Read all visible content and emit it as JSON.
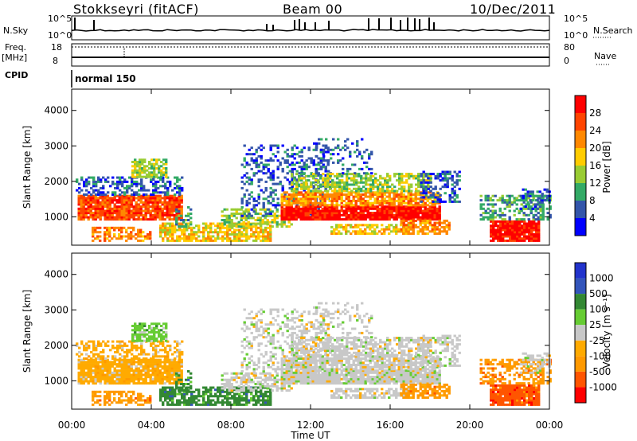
{
  "header": {
    "station": "Stokkseyri (fitACF)",
    "beam": "Beam 00",
    "date": "10/Dec/2011"
  },
  "top_panel": {
    "left_label": "N.Sky",
    "right_label": "N.Search",
    "left_ticks": [
      "10^5",
      "10^0"
    ],
    "right_ticks": [
      "10^5",
      "10^0"
    ]
  },
  "freq_panel": {
    "left_label_1": "Freq.",
    "left_label_2": "[MHz]",
    "right_label": "Nave",
    "left_ticks": [
      "18",
      "8"
    ],
    "right_ticks": [
      "80",
      "0"
    ],
    "cpid_label": "CPID",
    "mode": "normal 150"
  },
  "colors": {
    "power": [
      "#0000ff",
      "#3355aa",
      "#33aa66",
      "#99cc33",
      "#ffcc00",
      "#ff8800",
      "#ff4400",
      "#ff0000"
    ],
    "velocity": [
      "#ff0000",
      "#ff5500",
      "#ff9900",
      "#ffaa00",
      "#c8c8c8",
      "#66cc33",
      "#338833",
      "#3355bb",
      "#2233cc"
    ]
  },
  "chart_data": [
    {
      "type": "heatmap",
      "ylabel": "Slant Range [km]",
      "xlabel": "",
      "ylim": [
        200,
        4600
      ],
      "xlim": [
        0,
        24
      ],
      "yticks": [
        1000,
        2000,
        3000,
        4000
      ],
      "xticks": [
        "00:00",
        "04:00",
        "08:00",
        "12:00",
        "16:00",
        "20:00",
        "00:00"
      ],
      "colorbar": {
        "label": "Power [dB]",
        "ticks": [
          "4",
          "8",
          "12",
          "16",
          "20",
          "24",
          "28"
        ]
      }
    },
    {
      "type": "heatmap",
      "ylabel": "Slant Range [km]",
      "xlabel": "Time UT",
      "ylim": [
        200,
        4600
      ],
      "xlim": [
        0,
        24
      ],
      "yticks": [
        1000,
        2000,
        3000,
        4000
      ],
      "xticks": [
        "00:00",
        "04:00",
        "08:00",
        "12:00",
        "16:00",
        "20:00",
        "00:00"
      ],
      "colorbar": {
        "label": "Velocity [m s⁻¹]",
        "ticks": [
          "1000",
          "500",
          "100",
          "25",
          "-25",
          "-100",
          "-500",
          "-1000"
        ]
      }
    }
  ]
}
